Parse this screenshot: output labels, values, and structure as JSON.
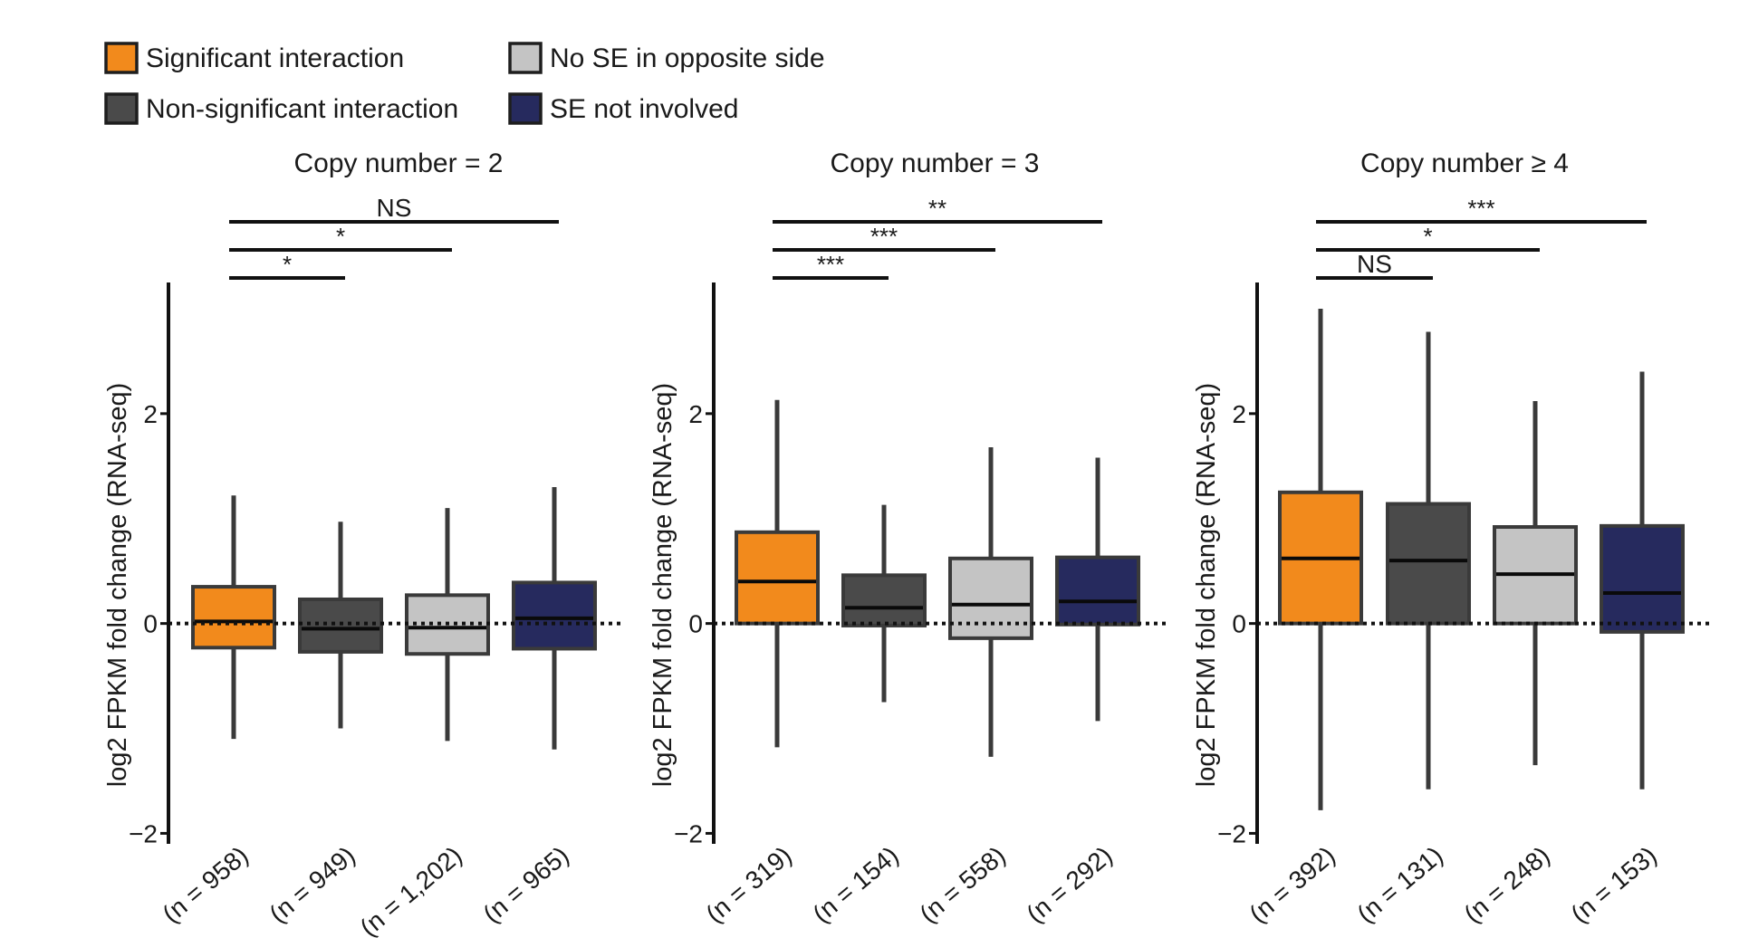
{
  "legend": [
    {
      "label": "Significant interaction",
      "color": "#F28A1C"
    },
    {
      "label": "No SE in opposite side",
      "color": "#C4C4C4"
    },
    {
      "label": "Non-significant interaction",
      "color": "#4A4A4A"
    },
    {
      "label": "SE not involved",
      "color": "#262A5E"
    }
  ],
  "chart_data": [
    {
      "type": "box",
      "title": "Copy number = 2",
      "ylabel": "log2 FPKM fold change (RNA-seq)",
      "ylim": [
        -2.1,
        3.25
      ],
      "yticks": [
        {
          "value": -2,
          "label": "−2"
        },
        {
          "value": 0,
          "label": "0"
        },
        {
          "value": 2,
          "label": "2"
        }
      ],
      "reference_line": 0,
      "boxes": [
        {
          "category": "(n = 958)",
          "whisker_low": -1.1,
          "q1": -0.23,
          "median": 0.02,
          "q3": 0.35,
          "whisker_high": 1.22,
          "color": "#F28A1C"
        },
        {
          "category": "(n = 949)",
          "whisker_low": -1.0,
          "q1": -0.27,
          "median": -0.05,
          "q3": 0.23,
          "whisker_high": 0.97,
          "color": "#4A4A4A"
        },
        {
          "category": "(n = 1,202)",
          "whisker_low": -1.12,
          "q1": -0.29,
          "median": -0.04,
          "q3": 0.27,
          "whisker_high": 1.1,
          "color": "#C4C4C4"
        },
        {
          "category": "(n = 965)",
          "whisker_low": -1.2,
          "q1": -0.24,
          "median": 0.05,
          "q3": 0.39,
          "whisker_high": 1.3,
          "color": "#262A5E"
        }
      ],
      "comparisons": [
        {
          "from": 0,
          "to": 3,
          "label": "NS"
        },
        {
          "from": 0,
          "to": 2,
          "label": "*"
        },
        {
          "from": 0,
          "to": 1,
          "label": "*"
        }
      ]
    },
    {
      "type": "box",
      "title": "Copy number = 3",
      "ylabel": "log2 FPKM fold change (RNA-seq)",
      "ylim": [
        -2.1,
        3.25
      ],
      "yticks": [
        {
          "value": -2,
          "label": "−2"
        },
        {
          "value": 0,
          "label": "0"
        },
        {
          "value": 2,
          "label": "2"
        }
      ],
      "reference_line": 0,
      "boxes": [
        {
          "category": "(n = 319)",
          "whisker_low": -1.18,
          "q1": 0.0,
          "median": 0.4,
          "q3": 0.87,
          "whisker_high": 2.13,
          "color": "#F28A1C"
        },
        {
          "category": "(n = 154)",
          "whisker_low": -0.75,
          "q1": -0.02,
          "median": 0.15,
          "q3": 0.46,
          "whisker_high": 1.13,
          "color": "#4A4A4A"
        },
        {
          "category": "(n = 558)",
          "whisker_low": -1.27,
          "q1": -0.14,
          "median": 0.18,
          "q3": 0.62,
          "whisker_high": 1.68,
          "color": "#C4C4C4"
        },
        {
          "category": "(n = 292)",
          "whisker_low": -0.93,
          "q1": -0.01,
          "median": 0.21,
          "q3": 0.63,
          "whisker_high": 1.58,
          "color": "#262A5E"
        }
      ],
      "comparisons": [
        {
          "from": 0,
          "to": 3,
          "label": "**"
        },
        {
          "from": 0,
          "to": 2,
          "label": "***"
        },
        {
          "from": 0,
          "to": 1,
          "label": "***"
        }
      ]
    },
    {
      "type": "box",
      "title": "Copy number ≥ 4",
      "ylabel": "log2 FPKM fold change (RNA-seq)",
      "ylim": [
        -2.1,
        3.25
      ],
      "yticks": [
        {
          "value": -2,
          "label": "−2"
        },
        {
          "value": 0,
          "label": "0"
        },
        {
          "value": 2,
          "label": "2"
        }
      ],
      "reference_line": 0,
      "boxes": [
        {
          "category": "(n = 392)",
          "whisker_low": -1.78,
          "q1": 0.0,
          "median": 0.62,
          "q3": 1.25,
          "whisker_high": 3.0,
          "color": "#F28A1C"
        },
        {
          "category": "(n = 131)",
          "whisker_low": -1.58,
          "q1": 0.0,
          "median": 0.6,
          "q3": 1.14,
          "whisker_high": 2.78,
          "color": "#4A4A4A"
        },
        {
          "category": "(n = 248)",
          "whisker_low": -1.35,
          "q1": 0.0,
          "median": 0.47,
          "q3": 0.92,
          "whisker_high": 2.12,
          "color": "#C4C4C4"
        },
        {
          "category": "(n = 153)",
          "whisker_low": -1.58,
          "q1": -0.08,
          "median": 0.29,
          "q3": 0.93,
          "whisker_high": 2.4,
          "color": "#262A5E"
        }
      ],
      "comparisons": [
        {
          "from": 0,
          "to": 3,
          "label": "***"
        },
        {
          "from": 0,
          "to": 2,
          "label": "*"
        },
        {
          "from": 0,
          "to": 1,
          "label": "NS"
        }
      ]
    }
  ]
}
